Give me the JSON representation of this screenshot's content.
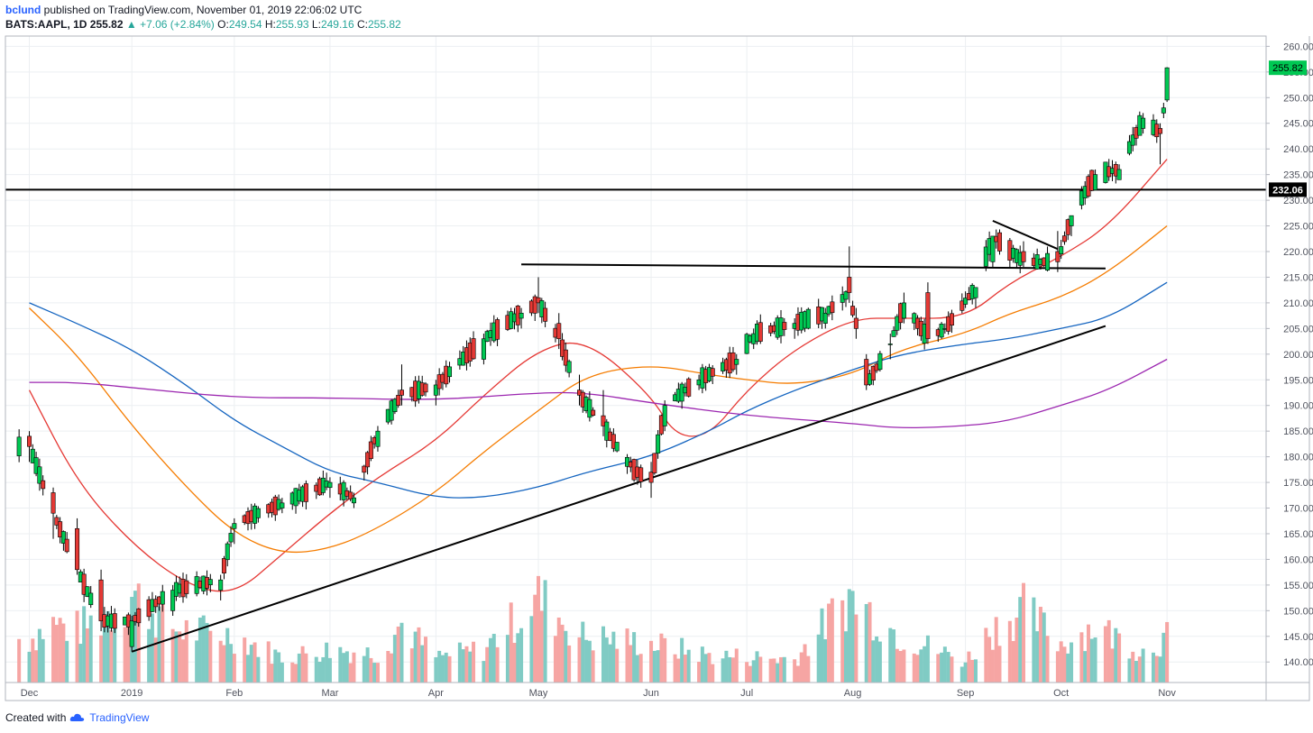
{
  "header": {
    "author": "bclund",
    "published_text": "published on TradingView.com, November 01, 2019 22:06:02 UTC"
  },
  "quote": {
    "symbol": "BATS:AAPL, 1D",
    "last": "255.82",
    "change": "+7.06 (+2.84%)",
    "o_label": "O:",
    "o": "249.54",
    "h_label": "H:",
    "h": "255.93",
    "l_label": "L:",
    "l": "249.16",
    "c_label": "C:",
    "c": "255.82"
  },
  "footer": {
    "created_with": "Created with",
    "brand": "TradingView"
  },
  "colors": {
    "up": "#26a69a",
    "down": "#ef5350",
    "candle_up_fill": "#00c853",
    "candle_down_fill": "#e53935",
    "vol_up": "#80cbc4",
    "vol_down": "#f6a5a3",
    "ma20": "#e53935",
    "ma50": "#f57c00",
    "ma100": "#1565c0",
    "ma200": "#9c27b0",
    "price_tag": "#00c853",
    "level_tag": "#000000"
  },
  "chart_data": {
    "type": "candlestick",
    "y_axis": {
      "range": [
        136,
        262
      ],
      "ticks": [
        "140.00",
        "145.00",
        "150.00",
        "155.00",
        "160.00",
        "165.00",
        "170.00",
        "175.00",
        "180.00",
        "185.00",
        "190.00",
        "195.00",
        "200.00",
        "205.00",
        "210.00",
        "215.00",
        "220.00",
        "225.00",
        "230.00",
        "235.00",
        "240.00",
        "245.00",
        "250.00",
        "255.00",
        "260.00"
      ],
      "last_price_label": "255.82",
      "level_label": "232.06"
    },
    "x_axis": {
      "ticks": [
        {
          "label": "Dec",
          "date": "2018-12-03"
        },
        {
          "label": "2019",
          "date": "2019-01-02"
        },
        {
          "label": "Feb",
          "date": "2019-02-01"
        },
        {
          "label": "Mar",
          "date": "2019-03-01"
        },
        {
          "label": "Apr",
          "date": "2019-04-01"
        },
        {
          "label": "May",
          "date": "2019-05-01"
        },
        {
          "label": "Jun",
          "date": "2019-06-03"
        },
        {
          "label": "Jul",
          "date": "2019-07-01"
        },
        {
          "label": "Aug",
          "date": "2019-08-01"
        },
        {
          "label": "Sep",
          "date": "2019-09-03"
        },
        {
          "label": "Oct",
          "date": "2019-10-01"
        },
        {
          "label": "Nov",
          "date": "2019-11-01"
        }
      ]
    },
    "ohlc_anchors": [
      {
        "date": "2018-12-03",
        "open": 184,
        "high": 185,
        "low": 179,
        "close": 182
      },
      {
        "date": "2018-12-10",
        "open": 173,
        "high": 174,
        "low": 164,
        "close": 169
      },
      {
        "date": "2018-12-17",
        "open": 166,
        "high": 168,
        "low": 157,
        "close": 158
      },
      {
        "date": "2018-12-24",
        "open": 156,
        "high": 158,
        "low": 146,
        "close": 148
      },
      {
        "date": "2019-01-02",
        "open": 143,
        "high": 149,
        "low": 142,
        "close": 148
      },
      {
        "date": "2019-01-14",
        "open": 150,
        "high": 155,
        "low": 149,
        "close": 154
      },
      {
        "date": "2019-01-28",
        "open": 154,
        "high": 157,
        "low": 152,
        "close": 156
      },
      {
        "date": "2019-02-01",
        "open": 166,
        "high": 168,
        "low": 163,
        "close": 167
      },
      {
        "date": "2019-02-15",
        "open": 170,
        "high": 172,
        "low": 169,
        "close": 171
      },
      {
        "date": "2019-03-01",
        "open": 174,
        "high": 176,
        "low": 172,
        "close": 175
      },
      {
        "date": "2019-03-08",
        "open": 171,
        "high": 173,
        "low": 170,
        "close": 172
      },
      {
        "date": "2019-03-15",
        "open": 182,
        "high": 186,
        "low": 181,
        "close": 185
      },
      {
        "date": "2019-03-22",
        "open": 193,
        "high": 198,
        "low": 190,
        "close": 192
      },
      {
        "date": "2019-04-01",
        "open": 192,
        "high": 195,
        "low": 190,
        "close": 194
      },
      {
        "date": "2019-04-15",
        "open": 199,
        "high": 204,
        "low": 198,
        "close": 203
      },
      {
        "date": "2019-04-26",
        "open": 207,
        "high": 209,
        "low": 205,
        "close": 208
      },
      {
        "date": "2019-05-01",
        "open": 211,
        "high": 215,
        "low": 208,
        "close": 210
      },
      {
        "date": "2019-05-07",
        "open": 206,
        "high": 208,
        "low": 201,
        "close": 203
      },
      {
        "date": "2019-05-13",
        "open": 193,
        "high": 196,
        "low": 190,
        "close": 192
      },
      {
        "date": "2019-05-20",
        "open": 188,
        "high": 193,
        "low": 184,
        "close": 186
      },
      {
        "date": "2019-05-28",
        "open": 179,
        "high": 180,
        "low": 177,
        "close": 178
      },
      {
        "date": "2019-06-03",
        "open": 177,
        "high": 179,
        "low": 172,
        "close": 175
      },
      {
        "date": "2019-06-07",
        "open": 186,
        "high": 191,
        "low": 185,
        "close": 190
      },
      {
        "date": "2019-06-17",
        "open": 194,
        "high": 196,
        "low": 193,
        "close": 195
      },
      {
        "date": "2019-06-28",
        "open": 198,
        "high": 200,
        "low": 196,
        "close": 199
      },
      {
        "date": "2019-07-03",
        "open": 202,
        "high": 205,
        "low": 201,
        "close": 204
      },
      {
        "date": "2019-07-15",
        "open": 205,
        "high": 207,
        "low": 203,
        "close": 206
      },
      {
        "date": "2019-07-24",
        "open": 206,
        "high": 209,
        "low": 205,
        "close": 208
      },
      {
        "date": "2019-07-31",
        "open": 215,
        "high": 221,
        "low": 210,
        "close": 212
      },
      {
        "date": "2019-08-02",
        "open": 207,
        "high": 209,
        "low": 203,
        "close": 205
      },
      {
        "date": "2019-08-05",
        "open": 199,
        "high": 200,
        "low": 193,
        "close": 194
      },
      {
        "date": "2019-08-12",
        "open": 202,
        "high": 204,
        "low": 199,
        "close": 202
      },
      {
        "date": "2019-08-16",
        "open": 207,
        "high": 212,
        "low": 206,
        "close": 210
      },
      {
        "date": "2019-08-23",
        "open": 212,
        "high": 214,
        "low": 202,
        "close": 203
      },
      {
        "date": "2019-08-28",
        "open": 205,
        "high": 206,
        "low": 204,
        "close": 205
      },
      {
        "date": "2019-09-06",
        "open": 211,
        "high": 213,
        "low": 209,
        "close": 213
      },
      {
        "date": "2019-09-11",
        "open": 218,
        "high": 223,
        "low": 217,
        "close": 223
      },
      {
        "date": "2019-09-20",
        "open": 220,
        "high": 222,
        "low": 217,
        "close": 218
      },
      {
        "date": "2019-09-30",
        "open": 220,
        "high": 224,
        "low": 216,
        "close": 218
      },
      {
        "date": "2019-10-04",
        "open": 225,
        "high": 227,
        "low": 223,
        "close": 227
      },
      {
        "date": "2019-10-11",
        "open": 232,
        "high": 236,
        "low": 232,
        "close": 235
      },
      {
        "date": "2019-10-18",
        "open": 234,
        "high": 237,
        "low": 234,
        "close": 236
      },
      {
        "date": "2019-10-25",
        "open": 244,
        "high": 247,
        "low": 243,
        "close": 246
      },
      {
        "date": "2019-10-30",
        "open": 244,
        "high": 245,
        "low": 237,
        "close": 243
      },
      {
        "date": "2019-10-31",
        "open": 247,
        "high": 249,
        "low": 246,
        "close": 248
      },
      {
        "date": "2019-11-01",
        "open": 249.54,
        "high": 255.93,
        "low": 249.16,
        "close": 255.82
      }
    ],
    "moving_averages": [
      {
        "id": "ma20",
        "points": [
          [
            "2018-12-03",
            193
          ],
          [
            "2018-12-17",
            175
          ],
          [
            "2019-01-02",
            163
          ],
          [
            "2019-01-18",
            155
          ],
          [
            "2019-02-01",
            153
          ],
          [
            "2019-02-15",
            161
          ],
          [
            "2019-03-01",
            169
          ],
          [
            "2019-03-15",
            176
          ],
          [
            "2019-04-01",
            183
          ],
          [
            "2019-04-15",
            192
          ],
          [
            "2019-05-01",
            201
          ],
          [
            "2019-05-15",
            203
          ],
          [
            "2019-06-03",
            192
          ],
          [
            "2019-06-10",
            184
          ],
          [
            "2019-06-20",
            184
          ],
          [
            "2019-07-01",
            193
          ],
          [
            "2019-07-15",
            201
          ],
          [
            "2019-08-01",
            207
          ],
          [
            "2019-08-15",
            207
          ],
          [
            "2019-09-03",
            207
          ],
          [
            "2019-09-16",
            214
          ],
          [
            "2019-10-01",
            219
          ],
          [
            "2019-10-15",
            225
          ],
          [
            "2019-11-01",
            238
          ]
        ]
      },
      {
        "id": "ma50",
        "points": [
          [
            "2018-12-03",
            209
          ],
          [
            "2018-12-17",
            200
          ],
          [
            "2019-01-02",
            186
          ],
          [
            "2019-01-18",
            174
          ],
          [
            "2019-02-01",
            165
          ],
          [
            "2019-02-15",
            161
          ],
          [
            "2019-03-01",
            162
          ],
          [
            "2019-03-15",
            166
          ],
          [
            "2019-04-01",
            173
          ],
          [
            "2019-04-15",
            181
          ],
          [
            "2019-05-01",
            189
          ],
          [
            "2019-05-15",
            196
          ],
          [
            "2019-06-03",
            198
          ],
          [
            "2019-06-20",
            196
          ],
          [
            "2019-07-01",
            195
          ],
          [
            "2019-07-15",
            194
          ],
          [
            "2019-08-01",
            196
          ],
          [
            "2019-08-15",
            201
          ],
          [
            "2019-09-03",
            204
          ],
          [
            "2019-09-16",
            208
          ],
          [
            "2019-10-01",
            211
          ],
          [
            "2019-10-15",
            216
          ],
          [
            "2019-11-01",
            225
          ]
        ]
      },
      {
        "id": "ma100",
        "points": [
          [
            "2018-12-03",
            210
          ],
          [
            "2018-12-17",
            206
          ],
          [
            "2019-01-02",
            201
          ],
          [
            "2019-01-18",
            194
          ],
          [
            "2019-02-01",
            187
          ],
          [
            "2019-02-15",
            182
          ],
          [
            "2019-03-01",
            177
          ],
          [
            "2019-03-15",
            175
          ],
          [
            "2019-04-01",
            172
          ],
          [
            "2019-04-15",
            172
          ],
          [
            "2019-05-01",
            174
          ],
          [
            "2019-05-15",
            177
          ],
          [
            "2019-06-03",
            180
          ],
          [
            "2019-06-20",
            185
          ],
          [
            "2019-07-01",
            189
          ],
          [
            "2019-07-15",
            193
          ],
          [
            "2019-08-01",
            197
          ],
          [
            "2019-08-15",
            200
          ],
          [
            "2019-09-03",
            202
          ],
          [
            "2019-09-16",
            203
          ],
          [
            "2019-10-01",
            205
          ],
          [
            "2019-10-15",
            207
          ],
          [
            "2019-11-01",
            214
          ]
        ]
      },
      {
        "id": "ma200",
        "points": [
          [
            "2018-12-03",
            194.5
          ],
          [
            "2018-12-17",
            194.5
          ],
          [
            "2019-01-02",
            193.5
          ],
          [
            "2019-02-01",
            191.5
          ],
          [
            "2019-03-01",
            191.5
          ],
          [
            "2019-04-01",
            191
          ],
          [
            "2019-05-01",
            192.5
          ],
          [
            "2019-05-15",
            192.5
          ],
          [
            "2019-06-03",
            190.5
          ],
          [
            "2019-07-01",
            188
          ],
          [
            "2019-08-01",
            186.5
          ],
          [
            "2019-08-15",
            185.5
          ],
          [
            "2019-09-03",
            186
          ],
          [
            "2019-09-16",
            187
          ],
          [
            "2019-10-01",
            190
          ],
          [
            "2019-10-15",
            193
          ],
          [
            "2019-11-01",
            199
          ]
        ]
      }
    ],
    "drawings": [
      {
        "id": "rising-trendline",
        "from": [
          "2019-01-02",
          142
        ],
        "to": [
          "2019-10-14",
          205.5
        ]
      },
      {
        "id": "resistance-line",
        "from": [
          "2019-04-26",
          217.5
        ],
        "to": [
          "2019-10-14",
          216.7
        ]
      },
      {
        "id": "flag-upper-line",
        "from": [
          "2019-09-11",
          226
        ],
        "to": [
          "2019-09-30",
          220.5
        ]
      },
      {
        "id": "horizontal-level",
        "price": 232.06
      }
    ],
    "volume": {
      "scale_max": 100,
      "anchors": [
        {
          "date": "2018-12-03",
          "v": 45,
          "up": false
        },
        {
          "date": "2018-12-10",
          "v": 60,
          "up": true
        },
        {
          "date": "2018-12-17",
          "v": 55,
          "up": false
        },
        {
          "date": "2018-12-24",
          "v": 65,
          "up": false
        },
        {
          "date": "2019-01-02",
          "v": 90,
          "up": false
        },
        {
          "date": "2019-01-15",
          "v": 55,
          "up": true
        },
        {
          "date": "2019-02-01",
          "v": 48,
          "up": true
        },
        {
          "date": "2019-02-15",
          "v": 26,
          "up": true
        },
        {
          "date": "2019-03-01",
          "v": 34,
          "up": false
        },
        {
          "date": "2019-03-15",
          "v": 30,
          "up": true
        },
        {
          "date": "2019-03-22",
          "v": 60,
          "up": false
        },
        {
          "date": "2019-04-01",
          "v": 26,
          "up": true
        },
        {
          "date": "2019-04-15",
          "v": 34,
          "up": false
        },
        {
          "date": "2019-05-01",
          "v": 87,
          "up": true
        },
        {
          "date": "2019-05-13",
          "v": 48,
          "up": false
        },
        {
          "date": "2019-06-03",
          "v": 40,
          "up": false
        },
        {
          "date": "2019-06-20",
          "v": 28,
          "up": true
        },
        {
          "date": "2019-07-15",
          "v": 24,
          "up": true
        },
        {
          "date": "2019-07-31",
          "v": 88,
          "up": false
        },
        {
          "date": "2019-08-05",
          "v": 75,
          "up": false
        },
        {
          "date": "2019-08-15",
          "v": 48,
          "up": true
        },
        {
          "date": "2019-09-03",
          "v": 22,
          "up": false
        },
        {
          "date": "2019-09-11",
          "v": 55,
          "up": true
        },
        {
          "date": "2019-09-20",
          "v": 75,
          "up": false
        },
        {
          "date": "2019-10-01",
          "v": 40,
          "up": false
        },
        {
          "date": "2019-10-11",
          "v": 58,
          "up": true
        },
        {
          "date": "2019-10-25",
          "v": 32,
          "up": false
        },
        {
          "date": "2019-11-01",
          "v": 46,
          "up": true
        }
      ]
    }
  }
}
